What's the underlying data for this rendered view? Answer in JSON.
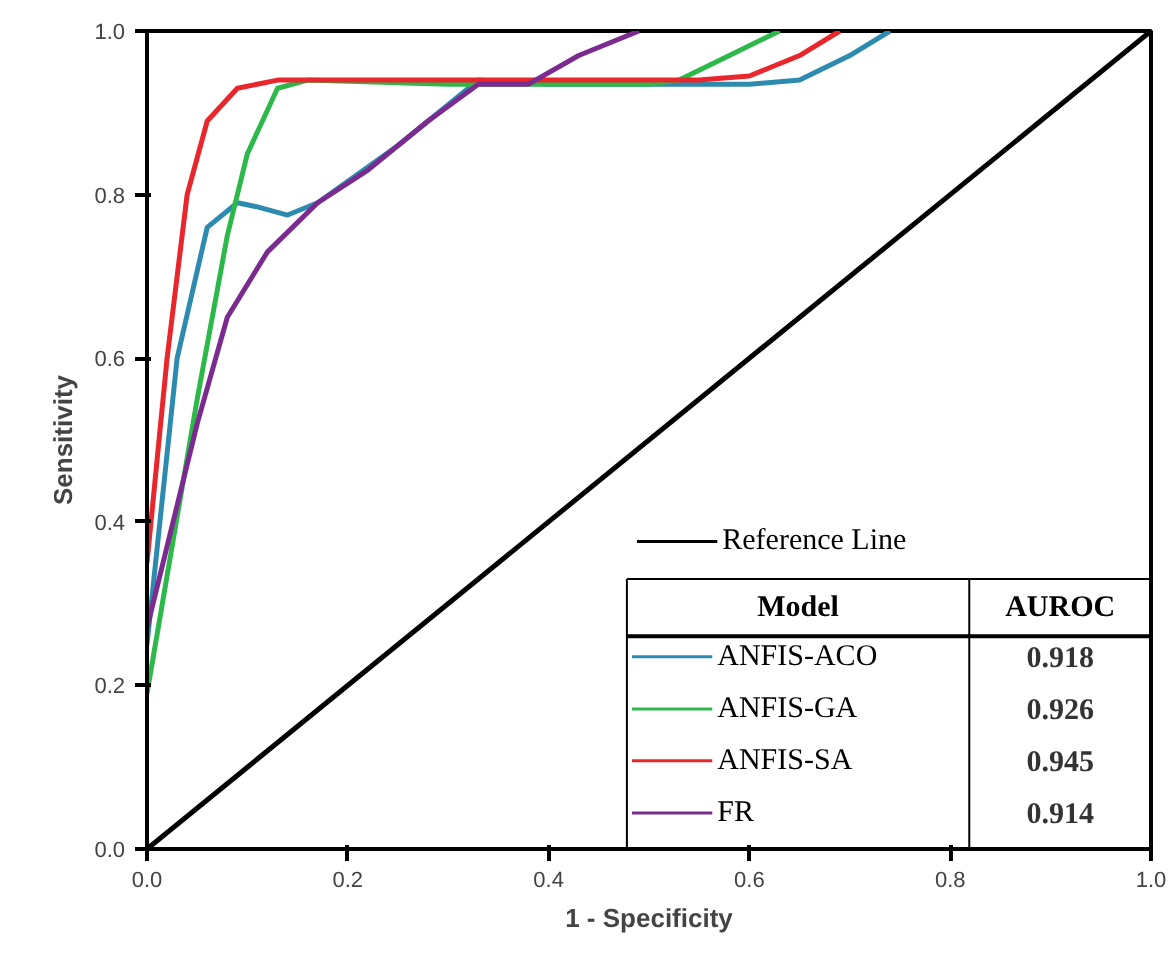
{
  "chart_data": {
    "type": "line",
    "xlabel": "1 - Specificity",
    "ylabel": "Sensitivity",
    "legend_title": "Model",
    "legend": "bottom right",
    "grid": false,
    "marker": "none",
    "line_style": "solid",
    "xlim": [
      0,
      1
    ],
    "ylim": [
      0,
      1
    ],
    "xticks": [
      {
        "value": 0,
        "label": "0.0"
      },
      {
        "value": 0.2,
        "label": "0.2"
      },
      {
        "value": 0.4,
        "label": "0.4"
      },
      {
        "value": 0.6,
        "label": "0.6"
      },
      {
        "value": 0.8,
        "label": "0.8"
      },
      {
        "value": 1,
        "label": "1.0"
      }
    ],
    "yticks": [
      {
        "value": 0,
        "label": "0.0"
      },
      {
        "value": 0.2,
        "label": "0.2"
      },
      {
        "value": 0.4,
        "label": "0.4"
      },
      {
        "value": 0.6,
        "label": "0.6"
      },
      {
        "value": 0.8,
        "label": "0.8"
      },
      {
        "value": 1,
        "label": "1.0"
      }
    ],
    "annotations": [
      "AUROC",
      "0.918",
      "0.926",
      "0.945",
      "0.914"
    ],
    "series": [
      {
        "name": "ANFIS-ACO",
        "color": "#2e8bb0",
        "x": [
          0,
          0.03,
          0.06,
          0.09,
          0.11,
          0.14,
          0.17,
          0.25,
          0.33,
          0.4,
          0.6,
          0.65,
          0.7,
          0.74
        ],
        "values": [
          0.25,
          0.6,
          0.76,
          0.79,
          0.785,
          0.775,
          0.79,
          0.86,
          0.94,
          0.935,
          0.935,
          0.94,
          0.97,
          1.0
        ]
      },
      {
        "name": "ANFIS-GA",
        "color": "#2db84a",
        "x": [
          0,
          0.05,
          0.08,
          0.1,
          0.13,
          0.16,
          0.3,
          0.5,
          0.53,
          0.58,
          0.63
        ],
        "values": [
          0.19,
          0.55,
          0.75,
          0.85,
          0.93,
          0.94,
          0.935,
          0.935,
          0.94,
          0.97,
          1.0
        ]
      },
      {
        "name": "ANFIS-SA",
        "color": "#e8262b",
        "x": [
          0,
          0.02,
          0.04,
          0.06,
          0.09,
          0.13,
          0.2,
          0.55,
          0.6,
          0.65,
          0.69
        ],
        "values": [
          0.35,
          0.6,
          0.8,
          0.89,
          0.93,
          0.94,
          0.94,
          0.94,
          0.945,
          0.97,
          1.0
        ]
      },
      {
        "name": "FR",
        "color": "#7b2a90",
        "x": [
          0,
          0.05,
          0.08,
          0.12,
          0.17,
          0.22,
          0.28,
          0.33,
          0.38,
          0.43,
          0.49
        ],
        "values": [
          0.27,
          0.52,
          0.65,
          0.73,
          0.79,
          0.83,
          0.89,
          0.935,
          0.935,
          0.97,
          1.0
        ]
      },
      {
        "name": "Reference Line",
        "color": "#000000",
        "x": [
          0,
          1
        ],
        "values": [
          0,
          1
        ]
      }
    ]
  }
}
